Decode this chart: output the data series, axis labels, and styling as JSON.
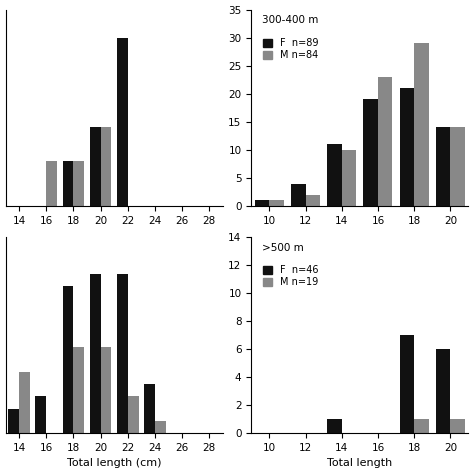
{
  "panel_tl": {
    "title": "",
    "categories": [
      16,
      18,
      20,
      22
    ],
    "F_values": [
      0,
      8,
      14,
      30
    ],
    "M_values": [
      8,
      8,
      14,
      0
    ],
    "xlim": [
      13,
      29
    ],
    "ylim": [
      0,
      35
    ],
    "xticks": [
      14,
      16,
      18,
      20,
      22,
      24,
      26,
      28
    ],
    "yticks": [],
    "show_yticks": false,
    "xlabel": "",
    "ylabel": ""
  },
  "panel_tr": {
    "title": "300-400 m",
    "legend_F": "F  n=89",
    "legend_M": "M n=84",
    "categories": [
      10,
      12,
      14,
      16,
      18,
      20
    ],
    "F_values": [
      1,
      4,
      11,
      19,
      21,
      14
    ],
    "M_values": [
      1,
      2,
      10,
      23,
      29,
      14
    ],
    "xlim": [
      9,
      21
    ],
    "ylim": [
      0,
      35
    ],
    "xticks": [
      10,
      12,
      14,
      16,
      18,
      20
    ],
    "yticks": [
      0,
      5,
      10,
      15,
      20,
      25,
      30,
      35
    ],
    "show_yticks": true,
    "xlabel": "",
    "ylabel": ""
  },
  "panel_bl": {
    "title": "",
    "categories": [
      14,
      16,
      18,
      20,
      22,
      24,
      26
    ],
    "F_values": [
      2,
      3,
      12,
      13,
      13,
      4,
      0
    ],
    "M_values": [
      5,
      0,
      7,
      7,
      3,
      1,
      0
    ],
    "xlim": [
      13,
      29
    ],
    "ylim": [
      0,
      16
    ],
    "xticks": [
      14,
      16,
      18,
      20,
      22,
      24,
      26,
      28
    ],
    "yticks": [],
    "show_yticks": false,
    "xlabel": "Total length (cm)",
    "ylabel": ""
  },
  "panel_br": {
    "title": ">500 m",
    "legend_F": "F  n=46",
    "legend_M": "M n=19",
    "categories": [
      14,
      16,
      18,
      20
    ],
    "F_values": [
      1,
      0,
      7,
      6
    ],
    "M_values": [
      0,
      0,
      1,
      1
    ],
    "xlim": [
      9,
      21
    ],
    "ylim": [
      0,
      14
    ],
    "xticks": [
      10,
      12,
      14,
      16,
      18,
      20
    ],
    "yticks": [
      0,
      2,
      4,
      6,
      8,
      10,
      12,
      14
    ],
    "show_yticks": true,
    "xlabel": "Total length",
    "ylabel": ""
  },
  "color_F": "#111111",
  "color_M": "#888888",
  "background": "#ffffff"
}
